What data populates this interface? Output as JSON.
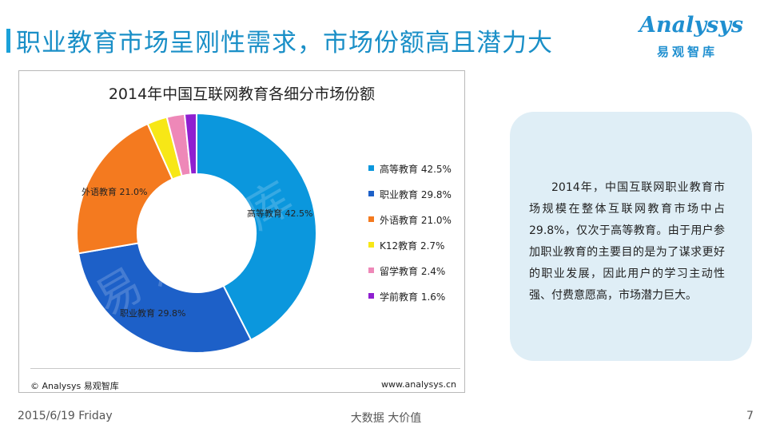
{
  "page": {
    "title": "职业教育市场呈刚性需求，市场份额高且潜力大",
    "logo_text": "Analysys",
    "logo_subtext": "易观智库"
  },
  "chart_data": {
    "type": "pie",
    "title": "2014年中国互联网教育各细分市场份额",
    "donut": true,
    "legend_position": "right",
    "unit": "%",
    "slices": [
      {
        "name": "高等教育",
        "value": 42.5,
        "label": "42.5%",
        "color": "#0b97dd"
      },
      {
        "name": "职业教育",
        "value": 29.8,
        "label": "29.8%",
        "color": "#1d60c8"
      },
      {
        "name": "外语教育",
        "value": 21.0,
        "label": "21.0%",
        "color": "#f47a1f"
      },
      {
        "name": "K12教育",
        "value": 2.7,
        "label": "2.7%",
        "color": "#f7e716"
      },
      {
        "name": "留学教育",
        "value": 2.4,
        "label": "2.4%",
        "color": "#ee88b8"
      },
      {
        "name": "学前教育",
        "value": 1.6,
        "label": "1.6%",
        "color": "#8f1fd0"
      }
    ],
    "watermark": "易观智库",
    "source_left": "© Analysys 易观智库",
    "source_right": "www.analysys.cn"
  },
  "note": {
    "text": "2014年，中国互联网职业教育市场规模在整体互联网教育市场中占29.8%，仅次于高等教育。由于用户参加职业教育的主要目的是为了谋求更好的职业发展，因此用户的学习主动性强、付费意愿高，市场潜力巨大。"
  },
  "footer": {
    "date": "2015/6/19 Friday",
    "center": "大数据    大价值",
    "page_number": "7"
  }
}
